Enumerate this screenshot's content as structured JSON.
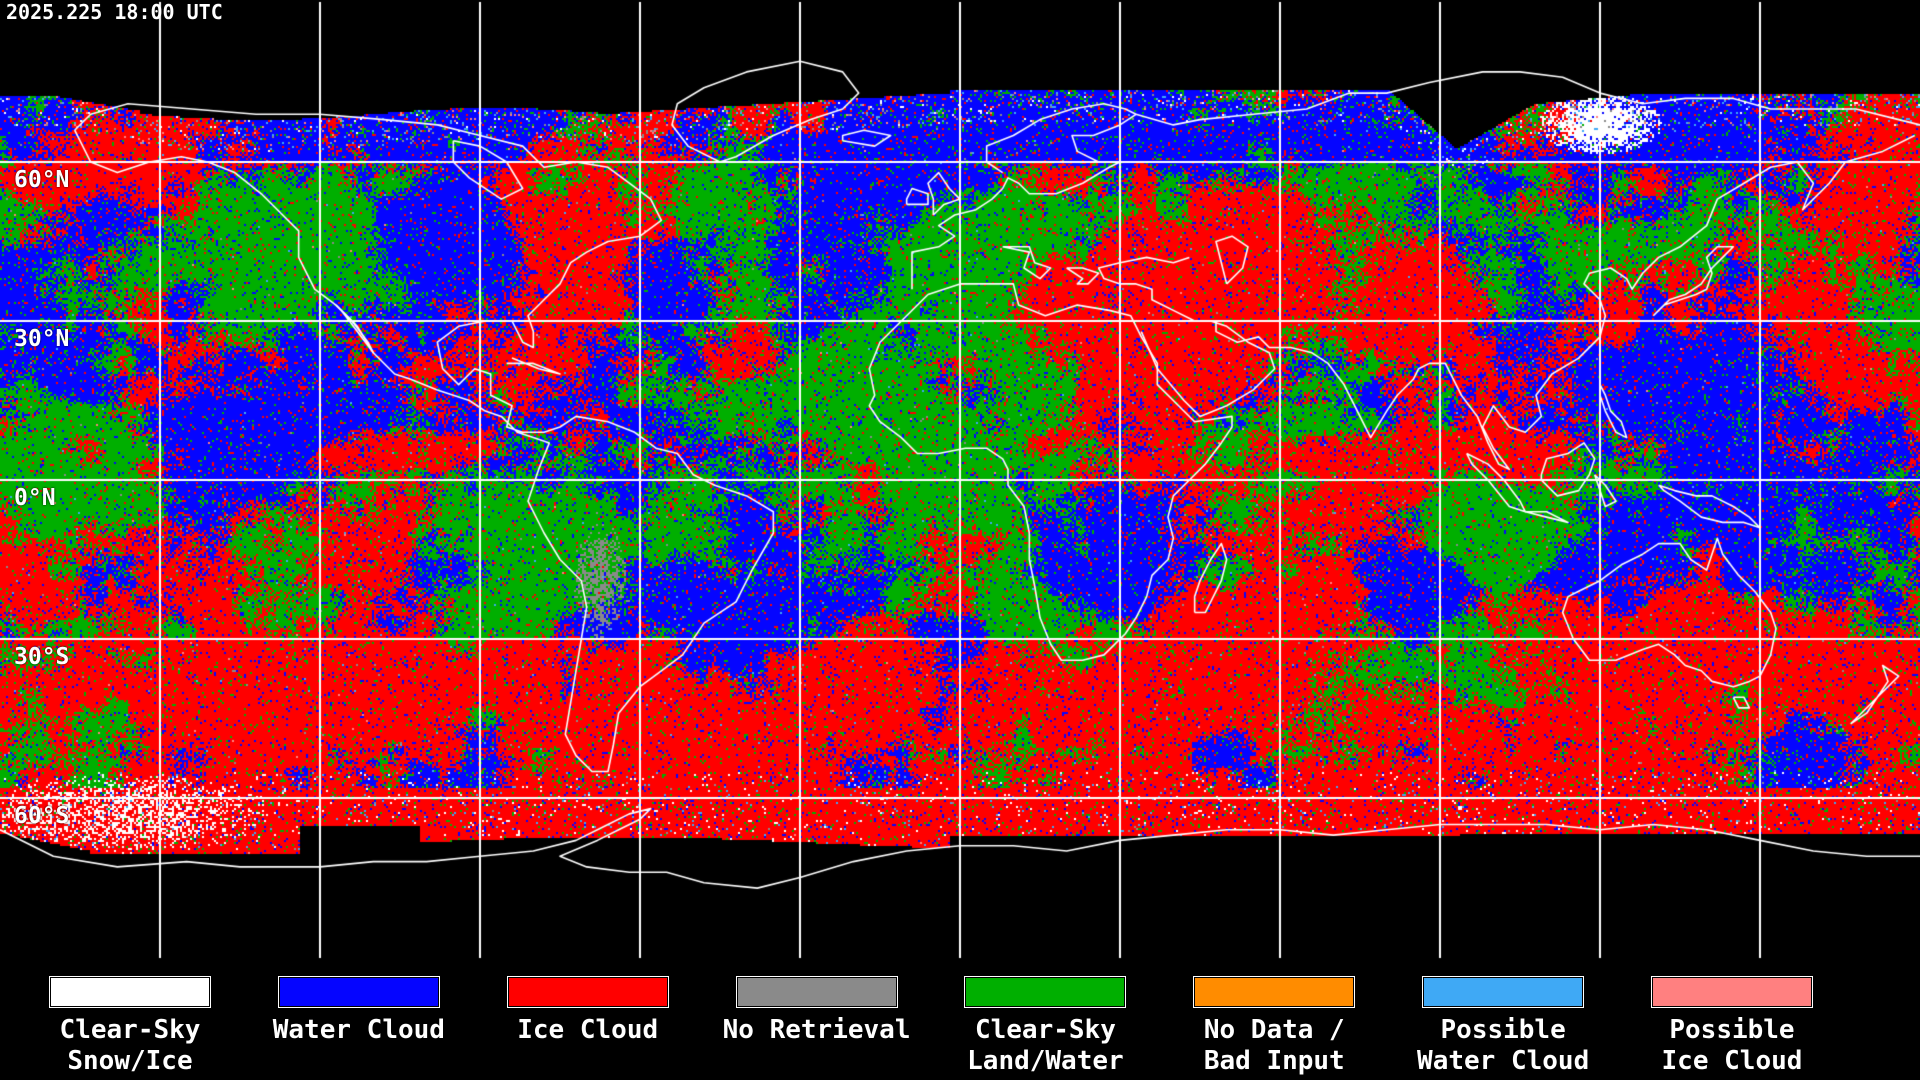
{
  "header": {
    "timestamp": "2025.225 18:00 UTC"
  },
  "map": {
    "projection": "equirectangular",
    "background_color": "#000000",
    "grid_color": "#FFFFFF",
    "coastline_color": "#FFFFFF",
    "grid_interval_degrees": 30,
    "latitude_labels": [
      {
        "label": "60°N",
        "lat": 60
      },
      {
        "label": "30°N",
        "lat": 30
      },
      {
        "label": "0°N",
        "lat": 0
      },
      {
        "label": "30°S",
        "lat": -30
      },
      {
        "label": "60°S",
        "lat": -60
      }
    ]
  },
  "legend": {
    "items": [
      {
        "id": "clear-sky-snow-ice",
        "label_lines": [
          "Clear-Sky",
          "Snow/Ice"
        ],
        "color": "#FFFFFF"
      },
      {
        "id": "water-cloud",
        "label_lines": [
          "Water Cloud"
        ],
        "color": "#0505FF"
      },
      {
        "id": "ice-cloud",
        "label_lines": [
          "Ice Cloud"
        ],
        "color": "#FF0000"
      },
      {
        "id": "no-retrieval",
        "label_lines": [
          "No Retrieval"
        ],
        "color": "#8A8A8A"
      },
      {
        "id": "clear-sky-land-water",
        "label_lines": [
          "Clear-Sky",
          "Land/Water"
        ],
        "color": "#00AF00"
      },
      {
        "id": "no-data-bad-input",
        "label_lines": [
          "No Data /",
          "Bad Input"
        ],
        "color": "#FF8C00"
      },
      {
        "id": "possible-water-cloud",
        "label_lines": [
          "Possible",
          "Water Cloud"
        ],
        "color": "#3FA9F5"
      },
      {
        "id": "possible-ice-cloud",
        "label_lines": [
          "Possible",
          "Ice Cloud"
        ],
        "color": "#FF8080"
      }
    ]
  }
}
